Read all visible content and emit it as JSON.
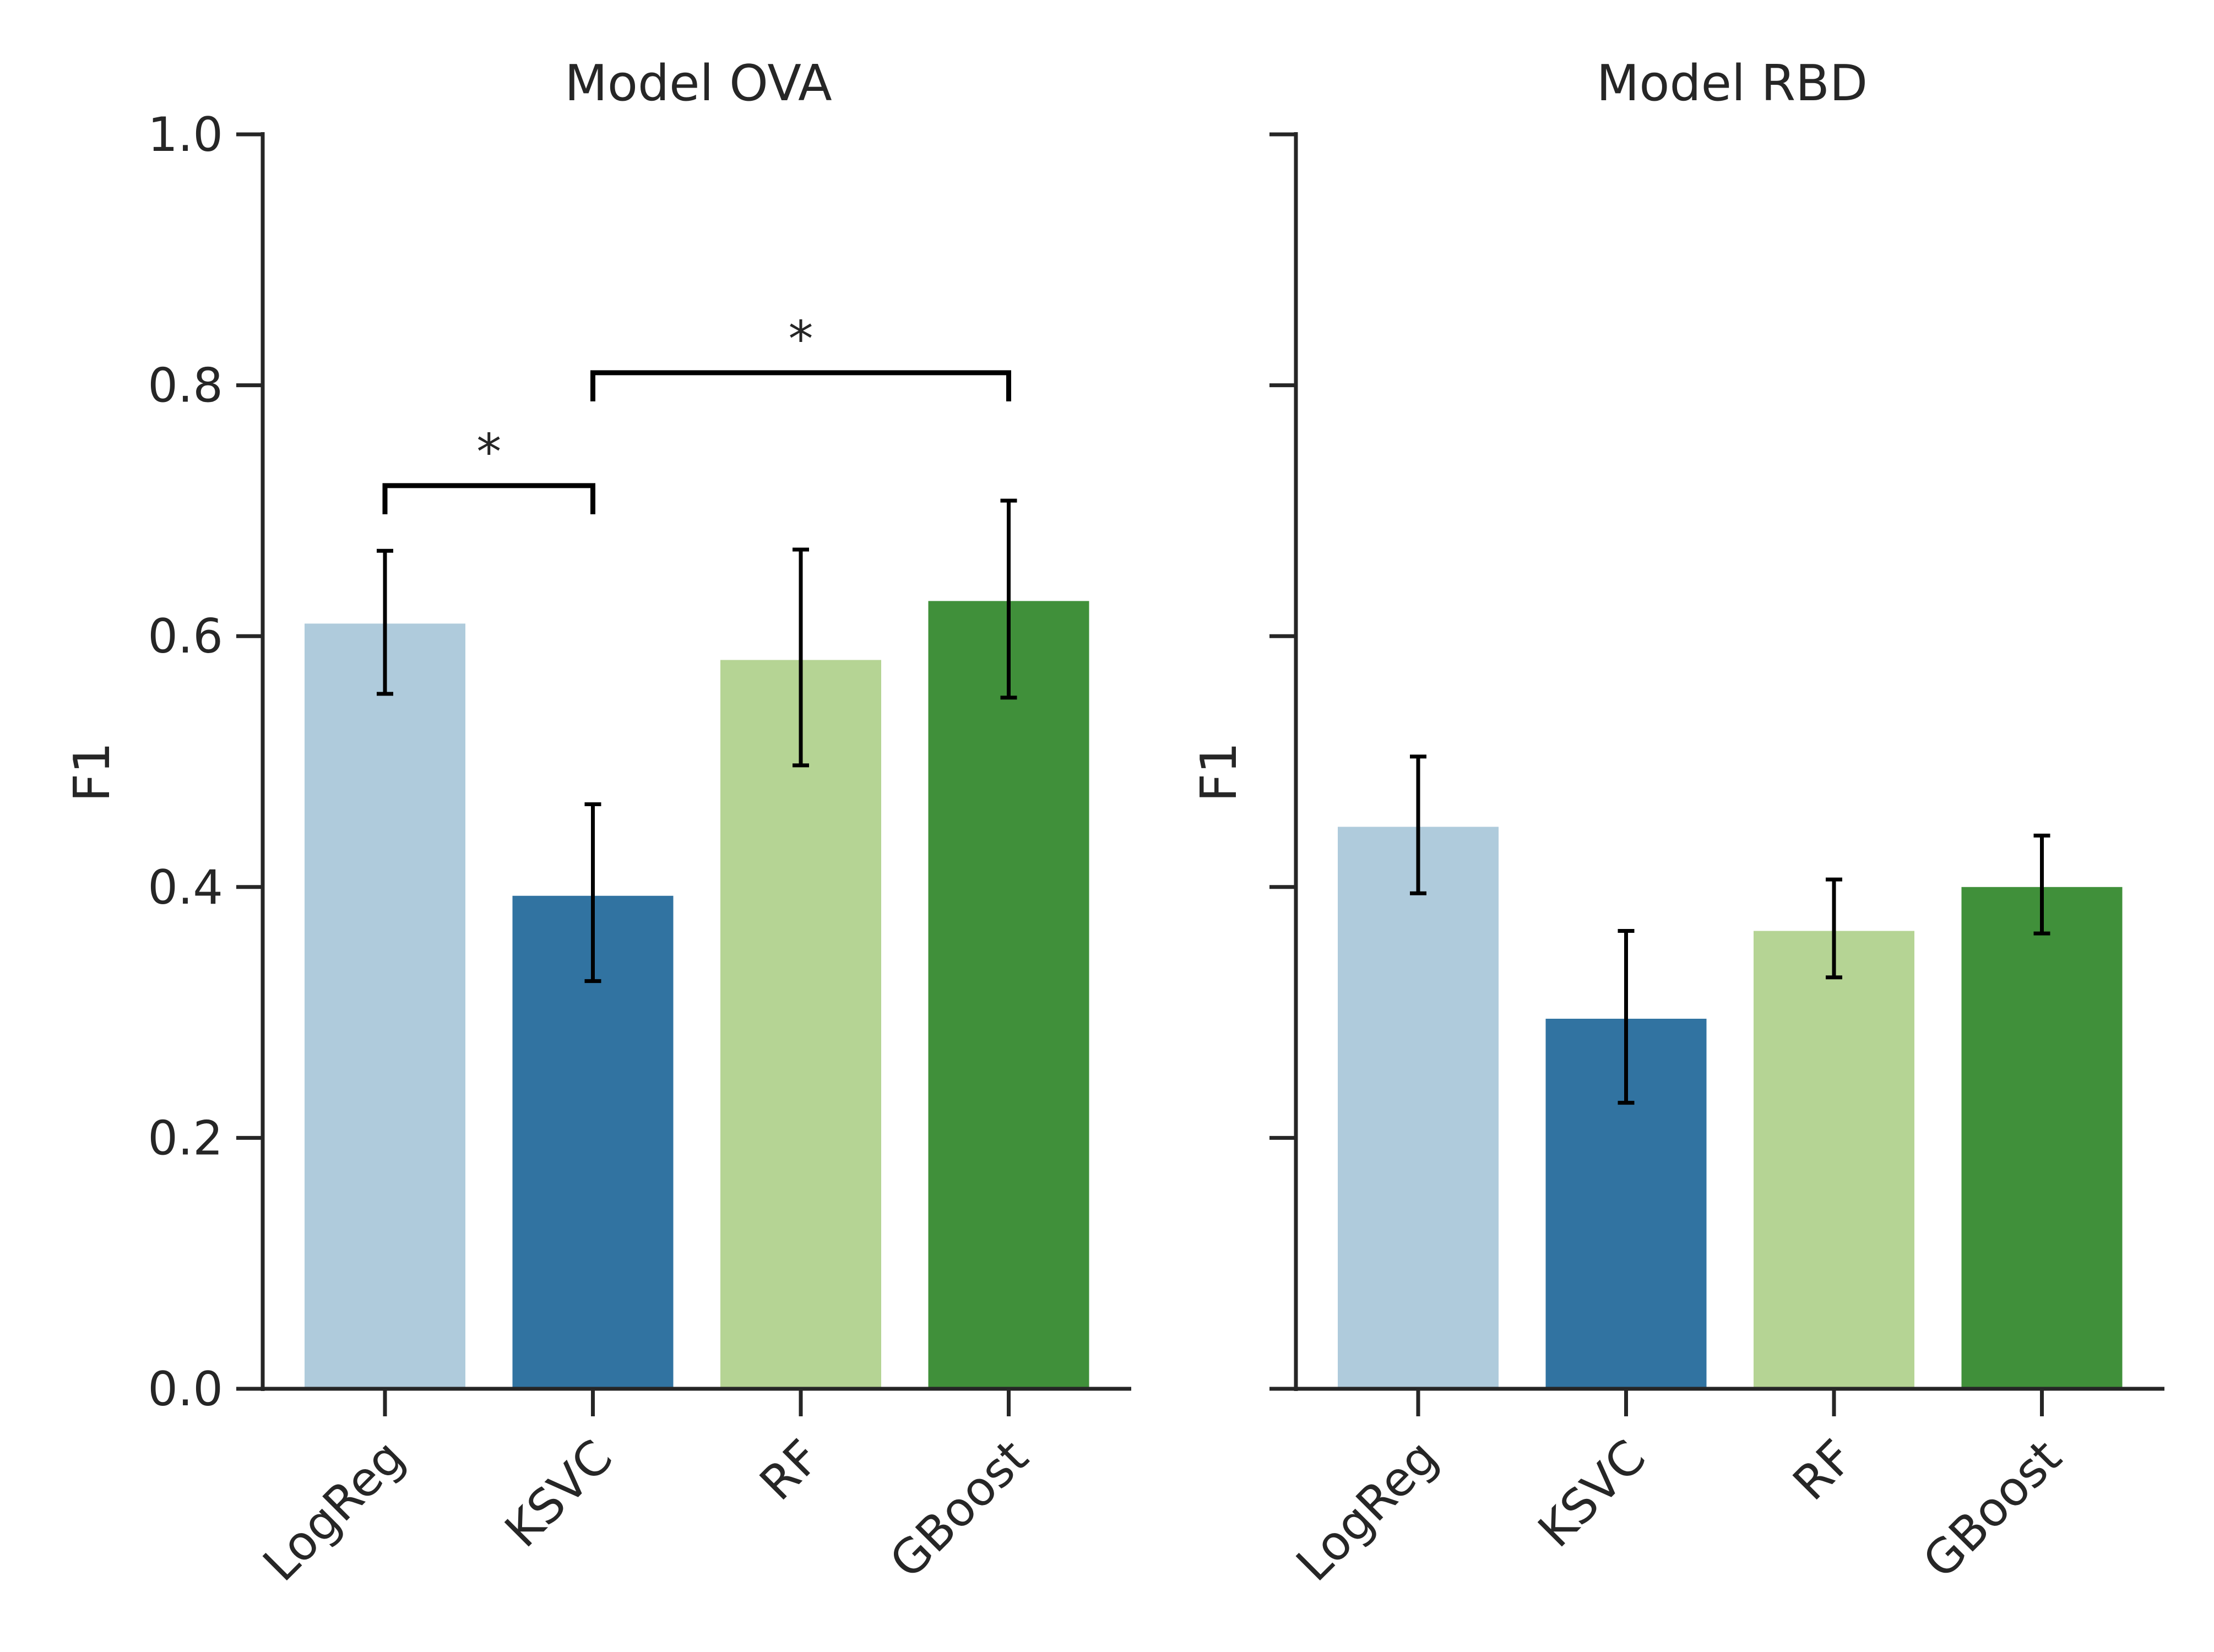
{
  "figure": {
    "colors": {
      "LogReg": "#afcbdc",
      "KSVC": "#3173a1",
      "RF": "#b5d494",
      "GBoost": "#40903a",
      "axis": "#262626",
      "error_bar": "#000000"
    }
  },
  "chart_data": [
    {
      "type": "bar",
      "title": "Model OVA",
      "xlabel": "",
      "ylabel": "F1",
      "ylim": [
        0,
        1.0
      ],
      "yticks": [
        "0.0",
        "0.2",
        "0.4",
        "0.6",
        "0.8",
        "1.0"
      ],
      "categories": [
        "LogReg",
        "KSVC",
        "RF",
        "GBoost"
      ],
      "values": [
        0.61,
        0.393,
        0.581,
        0.628
      ],
      "error_low": [
        0.554,
        0.325,
        0.497,
        0.551
      ],
      "error_high": [
        0.668,
        0.466,
        0.669,
        0.708
      ],
      "significance": [
        {
          "from": "LogReg",
          "to": "KSVC",
          "y": 0.72,
          "label": "*"
        },
        {
          "from": "KSVC",
          "to": "GBoost",
          "y": 0.81,
          "label": "*"
        }
      ],
      "grid": false
    },
    {
      "type": "bar",
      "title": "Model RBD",
      "xlabel": "",
      "ylabel": "F1",
      "ylim": [
        0,
        1.0
      ],
      "shared_y": true,
      "categories": [
        "LogReg",
        "KSVC",
        "RF",
        "GBoost"
      ],
      "values": [
        0.448,
        0.295,
        0.365,
        0.4
      ],
      "error_low": [
        0.395,
        0.228,
        0.328,
        0.363
      ],
      "error_high": [
        0.504,
        0.365,
        0.406,
        0.441
      ],
      "significance": [],
      "grid": false
    }
  ]
}
